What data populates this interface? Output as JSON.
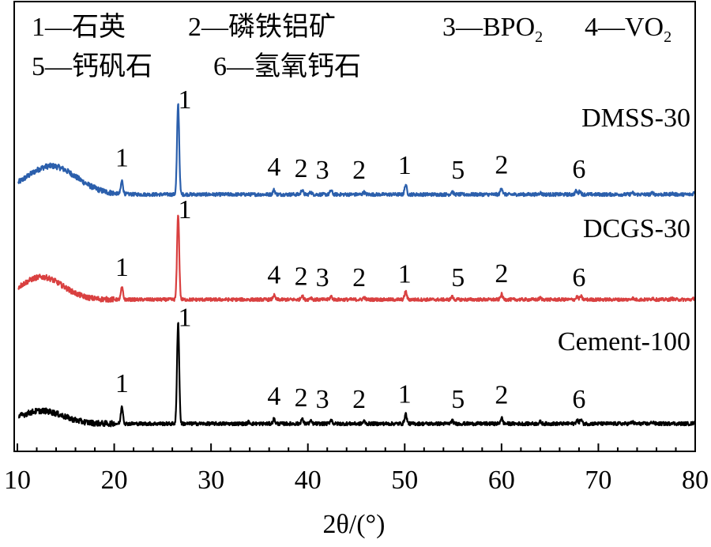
{
  "chart_data": {
    "type": "line",
    "title": "",
    "xlabel": "2θ/(°)",
    "ylabel": "",
    "xlim": [
      10,
      80
    ],
    "xticks": [
      10,
      20,
      30,
      40,
      50,
      60,
      70,
      80
    ],
    "grid": false,
    "legend": {
      "placement": "top-left",
      "rows": [
        [
          {
            "text": "1—石英"
          },
          {
            "text": "2—磷铁铝矿"
          },
          {
            "text": "3—BPO",
            "sub": "2"
          },
          {
            "text": "4—VO",
            "sub": "2"
          }
        ],
        [
          {
            "text": "5—钙矾石"
          },
          {
            "text": "6—氢氧钙石"
          }
        ]
      ]
    },
    "series": [
      {
        "name": "DMSS-30",
        "color": "#2b5fac",
        "hump": {
          "center": 13.5,
          "width": 2.6,
          "height": 0.5
        },
        "peaks": [
          [
            20.8,
            0.23
          ],
          [
            26.6,
            1.6
          ],
          [
            36.5,
            0.08
          ],
          [
            39.4,
            0.08
          ],
          [
            40.3,
            0.04
          ],
          [
            42.4,
            0.07
          ],
          [
            45.8,
            0.04
          ],
          [
            50.1,
            0.17
          ],
          [
            54.9,
            0.05
          ],
          [
            60.0,
            0.12
          ],
          [
            64.0,
            0.03
          ],
          [
            67.7,
            0.06
          ],
          [
            68.1,
            0.06
          ],
          [
            73.5,
            0.03
          ],
          [
            75.6,
            0.03
          ],
          [
            77.6,
            0.02
          ],
          [
            79.9,
            0.03
          ]
        ],
        "labels": [
          {
            "x": 20.8,
            "text": "1"
          },
          {
            "x": 27.3,
            "text": "1"
          },
          {
            "x": 36.5,
            "text": "4"
          },
          {
            "x": 39.3,
            "text": "2"
          },
          {
            "x": 41.5,
            "text": "3"
          },
          {
            "x": 45.3,
            "text": "2"
          },
          {
            "x": 50.0,
            "text": "1"
          },
          {
            "x": 55.5,
            "text": "5"
          },
          {
            "x": 60.0,
            "text": "2"
          },
          {
            "x": 68.0,
            "text": "6"
          }
        ]
      },
      {
        "name": "DCGS-30",
        "color": "#d94040",
        "hump": {
          "center": 12.5,
          "width": 2.2,
          "height": 0.42
        },
        "peaks": [
          [
            20.8,
            0.22
          ],
          [
            26.6,
            1.6
          ],
          [
            36.5,
            0.08
          ],
          [
            39.4,
            0.08
          ],
          [
            40.3,
            0.04
          ],
          [
            42.4,
            0.06
          ],
          [
            45.8,
            0.04
          ],
          [
            50.1,
            0.15
          ],
          [
            54.9,
            0.05
          ],
          [
            60.0,
            0.1
          ],
          [
            64.0,
            0.03
          ],
          [
            67.8,
            0.05
          ],
          [
            68.2,
            0.06
          ],
          [
            73.5,
            0.03
          ],
          [
            75.6,
            0.03
          ],
          [
            77.6,
            0.02
          ],
          [
            79.9,
            0.02
          ]
        ],
        "labels": [
          {
            "x": 20.8,
            "text": "1"
          },
          {
            "x": 27.3,
            "text": "1"
          },
          {
            "x": 36.5,
            "text": "4"
          },
          {
            "x": 39.3,
            "text": "2"
          },
          {
            "x": 41.5,
            "text": "3"
          },
          {
            "x": 45.3,
            "text": "2"
          },
          {
            "x": 50.0,
            "text": "1"
          },
          {
            "x": 55.5,
            "text": "5"
          },
          {
            "x": 60.0,
            "text": "2"
          },
          {
            "x": 68.0,
            "text": "6"
          }
        ]
      },
      {
        "name": "Cement-100",
        "color": "#000000",
        "hump": {
          "center": 12.5,
          "width": 2.2,
          "height": 0.22
        },
        "peaks": [
          [
            20.8,
            0.3
          ],
          [
            26.6,
            1.75
          ],
          [
            33.9,
            0.03
          ],
          [
            36.5,
            0.08
          ],
          [
            39.4,
            0.08
          ],
          [
            40.3,
            0.04
          ],
          [
            42.4,
            0.07
          ],
          [
            45.8,
            0.04
          ],
          [
            50.1,
            0.17
          ],
          [
            54.9,
            0.05
          ],
          [
            60.0,
            0.1
          ],
          [
            64.0,
            0.03
          ],
          [
            67.8,
            0.06
          ],
          [
            68.2,
            0.07
          ],
          [
            73.5,
            0.03
          ],
          [
            75.6,
            0.03
          ],
          [
            77.6,
            0.02
          ],
          [
            79.9,
            0.02
          ]
        ],
        "labels": [
          {
            "x": 20.8,
            "text": "1"
          },
          {
            "x": 27.3,
            "text": "1"
          },
          {
            "x": 36.5,
            "text": "4"
          },
          {
            "x": 39.3,
            "text": "2"
          },
          {
            "x": 41.5,
            "text": "3"
          },
          {
            "x": 45.3,
            "text": "2"
          },
          {
            "x": 50.0,
            "text": "1"
          },
          {
            "x": 55.5,
            "text": "5"
          },
          {
            "x": 60.0,
            "text": "2"
          },
          {
            "x": 68.0,
            "text": "6"
          }
        ]
      }
    ]
  }
}
